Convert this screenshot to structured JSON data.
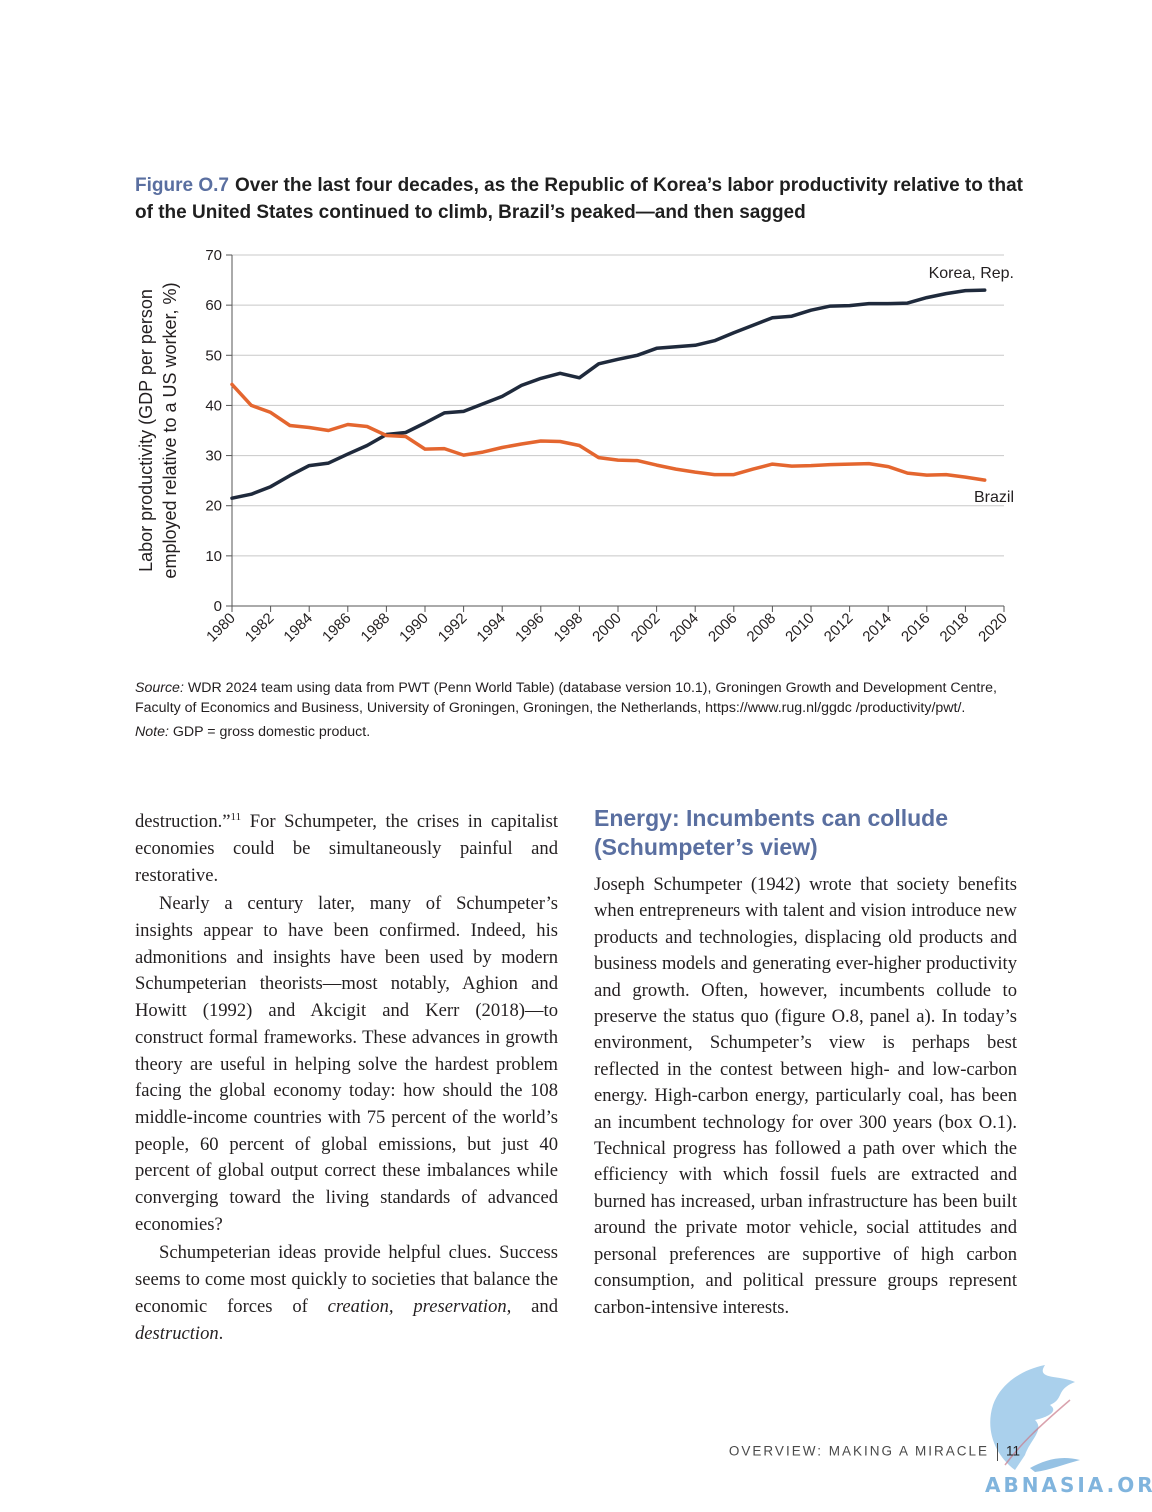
{
  "figure": {
    "label": "Figure O.7",
    "title": "Over the last four decades, as the Republic of Korea’s labor productivity relative to that of the United States continued to climb, Brazil’s peaked—and then sagged"
  },
  "chart_data": {
    "type": "line",
    "ylabel_line1": "Labor productivity (GDP per person",
    "ylabel_line2": "employed relative to a US worker, %)",
    "xlabel": "",
    "ylim": [
      0,
      70
    ],
    "xlim": [
      1980,
      2020
    ],
    "yticks": [
      0,
      10,
      20,
      30,
      40,
      50,
      60,
      70
    ],
    "xticks": [
      "1980",
      "1982",
      "1984",
      "1986",
      "1988",
      "1990",
      "1992",
      "1994",
      "1996",
      "1998",
      "2000",
      "2002",
      "2004",
      "2006",
      "2008",
      "2010",
      "2012",
      "2014",
      "2016",
      "2018",
      "2020"
    ],
    "grid": "horizontal",
    "legend": "inline labels at line ends",
    "x": [
      1980,
      1981,
      1982,
      1983,
      1984,
      1985,
      1986,
      1987,
      1988,
      1989,
      1990,
      1991,
      1992,
      1993,
      1994,
      1995,
      1996,
      1997,
      1998,
      1999,
      2000,
      2001,
      2002,
      2003,
      2004,
      2005,
      2006,
      2007,
      2008,
      2009,
      2010,
      2011,
      2012,
      2013,
      2014,
      2015,
      2016,
      2017,
      2018,
      2019
    ],
    "series": [
      {
        "name": "Korea, Rep.",
        "color": "#1f2a3c",
        "values": [
          21.5,
          22.3,
          23.8,
          26.0,
          28.0,
          28.5,
          30.3,
          32.0,
          34.2,
          34.6,
          36.5,
          38.5,
          38.8,
          40.3,
          41.8,
          44.0,
          45.4,
          46.4,
          45.5,
          48.3,
          49.2,
          50.0,
          51.4,
          51.7,
          52.0,
          52.9,
          54.5,
          56.0,
          57.5,
          57.8,
          59.0,
          59.8,
          59.9,
          60.3,
          60.3,
          60.4,
          61.5,
          62.3,
          62.9,
          63.0
        ]
      },
      {
        "name": "Brazil",
        "color": "#e4662f",
        "values": [
          44.2,
          40.0,
          38.6,
          36.0,
          35.6,
          35.0,
          36.2,
          35.8,
          34.0,
          33.8,
          31.3,
          31.4,
          30.1,
          30.7,
          31.6,
          32.3,
          32.9,
          32.8,
          32.0,
          29.6,
          29.1,
          29.0,
          28.1,
          27.3,
          26.7,
          26.2,
          26.2,
          27.3,
          28.3,
          27.9,
          28.0,
          28.2,
          28.3,
          28.4,
          27.8,
          26.5,
          26.1,
          26.2,
          25.7,
          25.1
        ]
      }
    ]
  },
  "source": {
    "label": "Source:",
    "text": " WDR 2024 team using data from PWT (Penn World Table) (database version 10.1), Groningen Growth and Development Centre, Faculty of Economics and Business, University of Groningen, Groningen, the Netherlands, https://www.rug.nl/ggdc /productivity/pwt/.",
    "note_label": "Note:",
    "note_text": " GDP = gross domestic product."
  },
  "left_column": {
    "p1_a": "destruction.”",
    "p1_sup": "11",
    "p1_b": " For Schumpeter, the crises in capitalist economies could be simultaneously painful and restorative.",
    "p2": "Nearly a century later, many of Schumpeter’s insights appear to have been confirmed. Indeed, his admonitions and insights have been used by modern Schumpeterian theorists—most notably, Aghion and Howitt (1992) and Akcigit and Kerr (2018)—to construct formal frameworks. These advances in growth theory are useful in helping solve the hardest problem facing the global economy today: how should the 108 middle-income countries with 75 percent of the world’s people, 60 percent of global emissions, but just 40 percent of global output correct these imbalances while converging toward the living standards of advanced economies?",
    "p3_a": "Schumpeterian ideas provide helpful clues. Success seems to come most quickly to societies that balance the economic forces of ",
    "p3_em1": "creation,",
    "p3_b": " ",
    "p3_em2": "preservation,",
    "p3_c": " and ",
    "p3_em3": "destruction",
    "p3_d": "."
  },
  "right_column": {
    "heading": "Energy: Incumbents can collude (Schumpeter’s view)",
    "p1": "Joseph Schumpeter (1942) wrote that society benefits when entrepreneurs with talent and vision introduce new products and technologies, displacing old products and business models and generating ever-higher productivity and growth. Often, however, incumbents collude to preserve the status quo (figure O.8, panel a). In today’s environment, Schumpeter’s view is perhaps best reflected in the contest between high- and low-carbon energy. High-carbon energy, particularly coal, has been an incumbent technology for over 300 years (box O.1). Technical progress has followed a path over which the efficiency with which fossil fuels are extracted and burned has increased, urban infrastructure has been built around the private motor vehicle, social attitudes and personal preferences are supportive of high carbon consumption, and political pressure groups represent carbon-intensive interests."
  },
  "footer": {
    "running_title": "OVERVIEW: MAKING A MIRACLE",
    "page_number": "11"
  },
  "watermark": {
    "text": "ABNASIA.ORG",
    "color": "#6aa8d8"
  }
}
